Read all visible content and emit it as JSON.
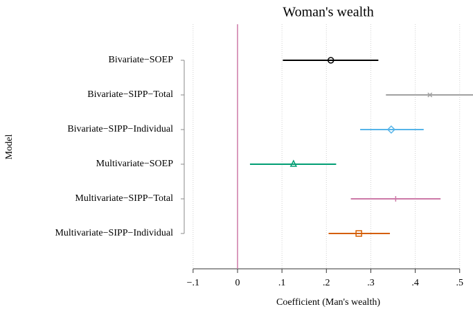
{
  "chart_data": {
    "type": "coefplot",
    "title": "Woman's wealth",
    "x_label": "Coefficient (Man's wealth)",
    "y_label": "Model",
    "categories": [
      "Bivariate−SOEP",
      "Bivariate−SIPP−Total",
      "Bivariate−SIPP−Individual",
      "Multivariate−SOEP",
      "Multivariate−SIPP−Total",
      "Multivariate−SIPP−Individual"
    ],
    "values": [
      0.21,
      0.433,
      0.346,
      0.126,
      0.356,
      0.273
    ],
    "lower": [
      0.102,
      0.334,
      0.276,
      0.028,
      0.255,
      0.205
    ],
    "upper": [
      0.317,
      0.53,
      0.419,
      0.222,
      0.457,
      0.343
    ],
    "colors": [
      "#000000",
      "#a0a0a0",
      "#56b4e9",
      "#009e73",
      "#cc79a7",
      "#d55e00"
    ],
    "markers": [
      "circle",
      "x",
      "diamond",
      "triangle",
      "plus",
      "square"
    ],
    "refline": 0,
    "refline_color": "#cc79a7",
    "xlim": [
      -0.12,
      0.53
    ],
    "xticks": [
      {
        "value": -0.1,
        "label": "−.1"
      },
      0,
      {
        "value": 0.1,
        "label": ".1"
      },
      {
        "value": 0.2,
        "label": ".2"
      },
      {
        "value": 0.3,
        "label": ".3"
      },
      {
        "value": 0.4,
        "label": ".4"
      },
      {
        "value": 0.5,
        "label": ".5"
      }
    ],
    "grid": true
  }
}
